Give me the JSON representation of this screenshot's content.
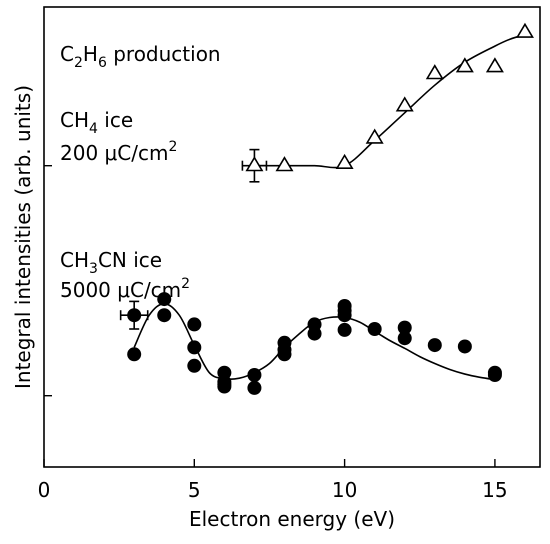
{
  "chart_data": {
    "type": "scatter",
    "xlabel": "Electron energy (eV)",
    "ylabel": "Integral intensities (arb. units)",
    "xlim": [
      0,
      16.5
    ],
    "ylim": [
      0,
      1
    ],
    "x_ticks": [
      0,
      5,
      10,
      15
    ],
    "x_tick_labels": [
      "0",
      "5",
      "10",
      "15"
    ],
    "y_ticks": [
      0.155,
      0.655
    ],
    "y_tick_labels_shown": false,
    "annotations": {
      "product": {
        "main": "C",
        "s1": "2",
        "m1": "H",
        "s2": "6",
        "tail": " production"
      },
      "ch4": {
        "line1_main": "CH",
        "line1_sub": "4",
        "line1_tail": " ice",
        "line2": "200 μC/cm",
        "line2_sup": "2"
      },
      "ch3cn": {
        "line1_a": "CH",
        "line1_sub": "3",
        "line1_b": "CN ice",
        "line2": "5000 μC/cm",
        "line2_sup": "2"
      }
    },
    "series": [
      {
        "marker": "open-triangle",
        "x": [
          7,
          8,
          10,
          11,
          12,
          13,
          14,
          15,
          16
        ],
        "y": [
          0.655,
          0.655,
          0.66,
          0.715,
          0.785,
          0.855,
          0.87,
          0.87,
          0.945
        ],
        "errorbar": {
          "x": 7,
          "y": 0.655,
          "xerr": 0.4,
          "yerr": 0.035
        },
        "fit": {
          "x": [
            7,
            8,
            9,
            10,
            11,
            12,
            13,
            14,
            15,
            15.5,
            16
          ],
          "y": [
            0.655,
            0.655,
            0.655,
            0.655,
            0.71,
            0.77,
            0.83,
            0.88,
            0.915,
            0.93,
            0.94
          ]
        }
      },
      {
        "marker": "filled-circle",
        "x": [
          3,
          3,
          4,
          4,
          5,
          5,
          5,
          6,
          6,
          6,
          6,
          7,
          7,
          8,
          8,
          8,
          9,
          9,
          10,
          10,
          10,
          10,
          11,
          12,
          12,
          13,
          14,
          15,
          15
        ],
        "y": [
          0.245,
          0.33,
          0.365,
          0.33,
          0.31,
          0.26,
          0.22,
          0.205,
          0.185,
          0.175,
          0.18,
          0.2,
          0.172,
          0.255,
          0.27,
          0.245,
          0.31,
          0.29,
          0.35,
          0.34,
          0.33,
          0.298,
          0.3,
          0.303,
          0.28,
          0.265,
          0.262,
          0.205,
          0.2
        ],
        "errorbar": {
          "x": 3,
          "y": 0.33,
          "xerr": 0.45,
          "yerr": 0.03
        },
        "fit": {
          "x": [
            3,
            3.5,
            4,
            4.5,
            5,
            5.5,
            6,
            6.5,
            7,
            7.5,
            8,
            8.5,
            9,
            9.5,
            10,
            10.5,
            11,
            11.5,
            12,
            12.5,
            13,
            13.5,
            14,
            14.5,
            15
          ],
          "y": [
            0.26,
            0.33,
            0.355,
            0.33,
            0.265,
            0.205,
            0.192,
            0.193,
            0.205,
            0.225,
            0.26,
            0.29,
            0.315,
            0.325,
            0.325,
            0.315,
            0.295,
            0.275,
            0.258,
            0.24,
            0.225,
            0.212,
            0.202,
            0.195,
            0.19
          ]
        }
      }
    ]
  }
}
